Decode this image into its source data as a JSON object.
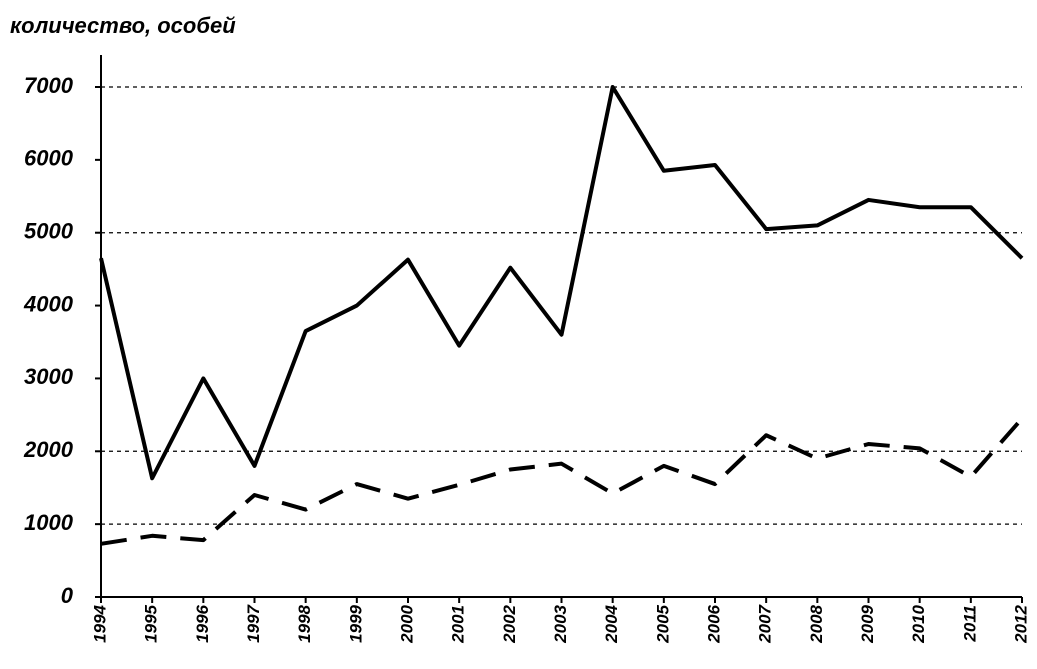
{
  "chart_data": {
    "type": "line",
    "title": "количество, особей",
    "x": [
      "1994",
      "1995",
      "1996",
      "1997",
      "1998",
      "1999",
      "2000",
      "2001",
      "2002",
      "2003",
      "2004",
      "2005",
      "2006",
      "2007",
      "2008",
      "2009",
      "2010",
      "2011",
      "2012"
    ],
    "series": [
      {
        "color": "#000000",
        "dashed": false,
        "values": [
          4650,
          1630,
          3000,
          1800,
          3650,
          4000,
          4630,
          3450,
          4520,
          3600,
          7000,
          5850,
          5930,
          5050,
          5100,
          5450,
          5350,
          5350,
          4650
        ]
      },
      {
        "color": "#000000",
        "dashed": true,
        "values": [
          730,
          840,
          780,
          1400,
          1200,
          1550,
          1350,
          1540,
          1750,
          1830,
          1420,
          1800,
          1550,
          2220,
          1900,
          2100,
          2040,
          1650,
          2450
        ]
      }
    ],
    "ylim": [
      0,
      7000
    ],
    "yticks": [
      0,
      1000,
      2000,
      3000,
      4000,
      5000,
      6000,
      7000
    ],
    "grid_lines": [
      1000,
      2000,
      5000,
      7000
    ]
  }
}
